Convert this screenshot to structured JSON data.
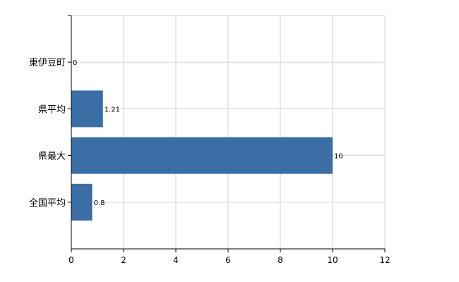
{
  "chart_data": {
    "type": "bar",
    "orientation": "horizontal",
    "categories": [
      "東伊豆町",
      "県平均",
      "県最大",
      "全国平均"
    ],
    "values": [
      0,
      1.21,
      10,
      0.8
    ],
    "value_labels": [
      "0",
      "1.21",
      "10",
      "0.8"
    ],
    "xlim": [
      0,
      12
    ],
    "x_ticks": [
      "0",
      "2",
      "4",
      "6",
      "8",
      "10",
      "12"
    ],
    "grid": true,
    "title": "",
    "xlabel": "",
    "ylabel": "",
    "bar_color": "#3a6ea5"
  }
}
